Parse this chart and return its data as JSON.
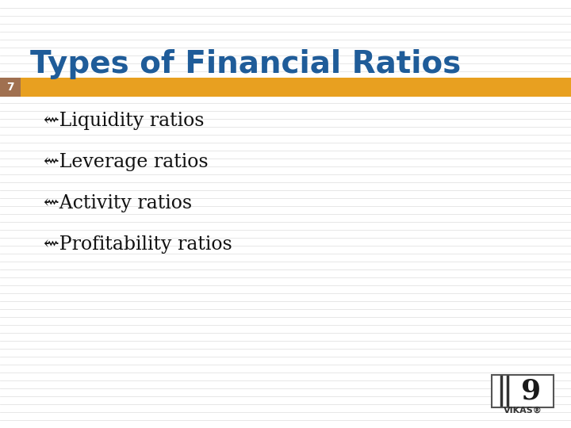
{
  "title": "Types of Financial Ratios",
  "title_color": "#1F5C99",
  "title_fontsize": 28,
  "slide_number": "7",
  "slide_number_bg": "#A07050",
  "slide_number_color": "#FFFFFF",
  "banner_color": "#E8A020",
  "bg_color": "#E8E8E8",
  "stripe_color": "#DADADA",
  "bullet_items": [
    "Liquidity ratios",
    "Leverage ratios",
    "Activity ratios",
    "Profitability ratios"
  ],
  "bullet_prefix": "⇜Liquidity ratios",
  "bullet_symbol": "⇜",
  "bullet_color": "#111111",
  "bullet_fontsize": 17,
  "vikas_color": "#333333"
}
